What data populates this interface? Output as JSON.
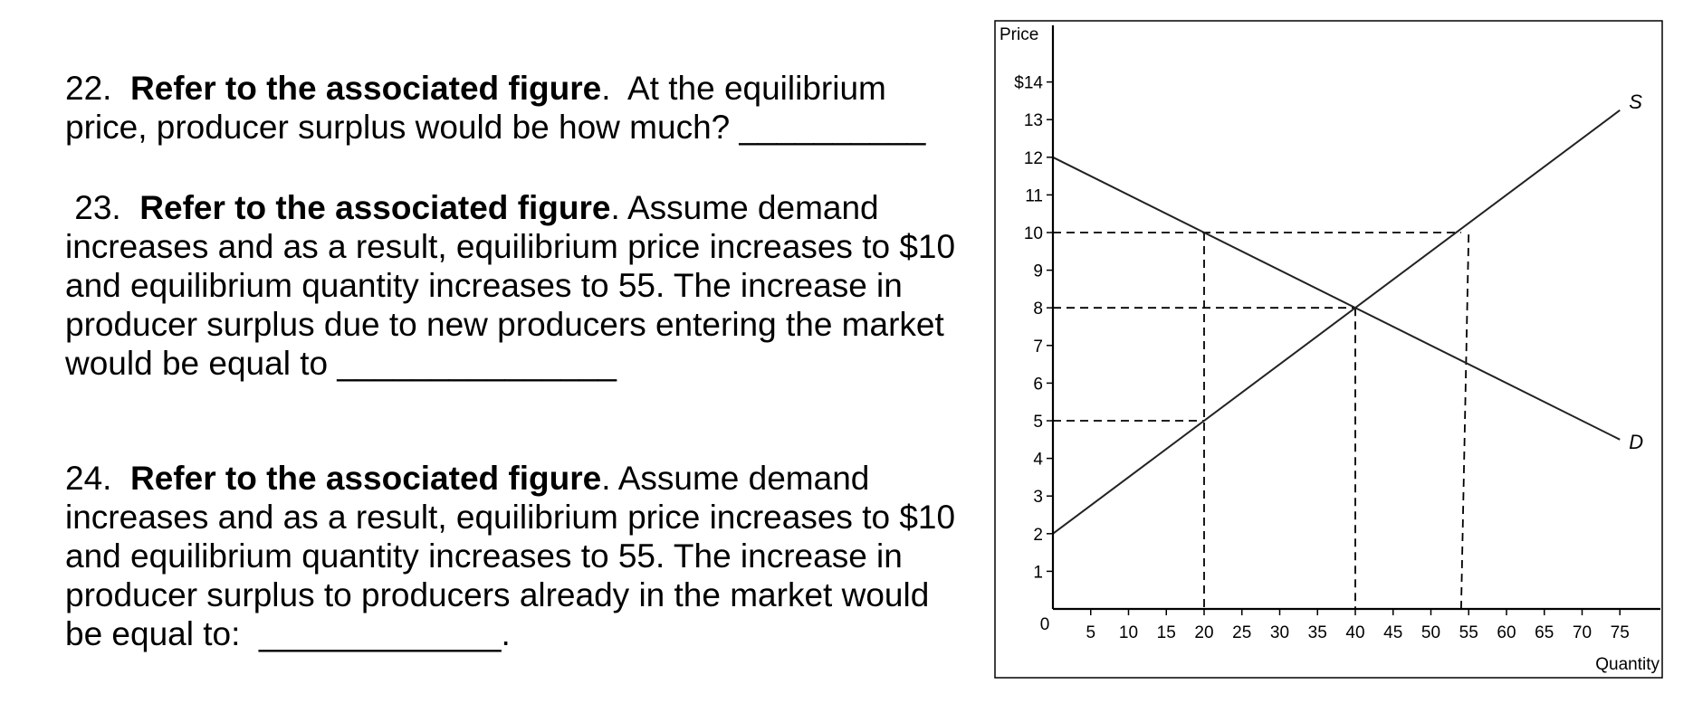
{
  "questions": [
    {
      "number": "22.",
      "bold": "Refer to the associated figure",
      "lines": [
        ".  At the equilibrium",
        "price, producer surplus would be how much? __________"
      ]
    },
    {
      "number": " 23.",
      "bold": "Refer to the associated figure",
      "lines": [
        ". Assume demand",
        "increases and as a result, equilibrium price increases to $10",
        "and equilibrium quantity increases to 55. The increase in",
        "producer surplus due to new producers entering the market",
        "would be equal to _______________"
      ]
    },
    {
      "number": "24.",
      "bold": "Refer to the associated figure",
      "lines": [
        ". Assume demand",
        "increases and as a result, equilibrium price increases to $10",
        "and equilibrium quantity increases to 55. The increase in",
        "producer surplus to producers already in the market would",
        "be equal to:  _____________."
      ]
    }
  ],
  "chart_data": {
    "type": "line",
    "ylabel": "Price",
    "xlabel": "Quantity",
    "xlim": [
      0,
      80
    ],
    "ylim": [
      0,
      15
    ],
    "x_ticks": [
      5,
      10,
      15,
      20,
      25,
      30,
      35,
      40,
      45,
      50,
      55,
      60,
      65,
      70,
      75
    ],
    "x_tick_labels": [
      "5",
      "10",
      "15",
      "20",
      "25",
      "30",
      "35",
      "40",
      "45",
      "50",
      "55",
      "60",
      "65",
      "70",
      "75"
    ],
    "y_ticks": [
      1,
      2,
      3,
      4,
      5,
      6,
      7,
      8,
      9,
      10,
      11,
      12,
      13,
      14
    ],
    "y_tick_labels": [
      "1",
      "2",
      "3",
      "4",
      "5",
      "6",
      "7",
      "8",
      "9",
      "10",
      "11",
      "12",
      "13",
      "$14"
    ],
    "origin_label": "0",
    "grid": false,
    "series": [
      {
        "name": "S",
        "x": [
          0,
          75
        ],
        "y": [
          2,
          13.25
        ]
      },
      {
        "name": "D",
        "x": [
          0,
          75
        ],
        "y": [
          12,
          4.5
        ]
      }
    ],
    "reference_lines": [
      {
        "orientation": "horizontal",
        "y": 10,
        "x_from": 0,
        "x_to": 54
      },
      {
        "orientation": "horizontal",
        "y": 8,
        "x_from": 0,
        "x_to": 40
      },
      {
        "orientation": "horizontal",
        "y": 5,
        "x_from": 0,
        "x_to": 20
      },
      {
        "orientation": "vertical",
        "x": 20,
        "y_from": 0,
        "y_to": 10
      },
      {
        "orientation": "vertical",
        "x": 40,
        "y_from": 0,
        "y_to": 8
      },
      {
        "orientation": "vertical",
        "x": 54,
        "y_from": 10,
        "y_to": 0,
        "x_end": 55
      }
    ]
  }
}
